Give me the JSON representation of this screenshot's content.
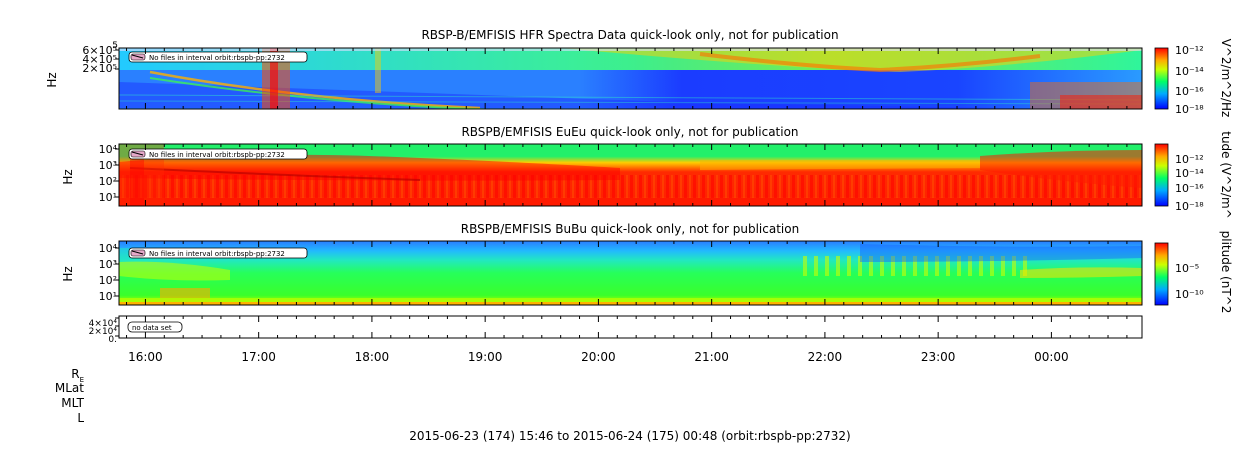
{
  "chart_data": [
    {
      "type": "heatmap",
      "title": "RBSP-B/EMFISIS  HFR Spectra Data quick-look only, not for publication",
      "ylabel": "Hz",
      "yticks": [
        "6×10⁵",
        "4×10⁵",
        "2×10⁵"
      ],
      "ytick_top": "5",
      "notice": "No files in interval orbit:rbspb-pp:2732",
      "colorbar_label": "V^2/m^2/Hz",
      "colorbar_ticks": [
        "10⁻¹²",
        "10⁻¹⁴",
        "10⁻¹⁶",
        "10⁻¹⁸"
      ],
      "colorbar_range": [
        -18.5,
        -11.5
      ]
    },
    {
      "type": "heatmap",
      "title": "RBSPB/EMFISIS  EuEu quick-look only, not for publication",
      "ylabel": "Hz",
      "yticks": [
        "10⁴",
        "10³",
        "10²",
        "10¹"
      ],
      "notice": "No files in interval orbit:rbspb-pp:2732",
      "colorbar_label": "tude (V^2/m^",
      "colorbar_ticks": [
        "10⁻¹²",
        "10⁻¹⁴",
        "10⁻¹⁶",
        "10⁻¹⁸"
      ],
      "colorbar_range": [
        -18.5,
        -11.5
      ]
    },
    {
      "type": "heatmap",
      "title": "RBSPB/EMFISIS  BuBu quick-look only, not for publication",
      "ylabel": "Hz",
      "yticks": [
        "10⁴",
        "10³",
        "10²",
        "10¹"
      ],
      "notice": "No files in interval orbit:rbspb-pp:2732",
      "colorbar_label": "plitude (nT^2",
      "colorbar_ticks": [
        "10⁻⁵",
        "10⁻¹⁰"
      ],
      "colorbar_range": [
        -12,
        -1
      ]
    },
    {
      "type": "line",
      "title": "",
      "yticks": [
        "4×10⁴",
        "2×10⁴",
        "0."
      ],
      "notice": "no data set"
    }
  ],
  "x_axis": {
    "ticks": [
      "16:00",
      "17:00",
      "18:00",
      "19:00",
      "20:00",
      "21:00",
      "22:00",
      "23:00",
      "00:00"
    ],
    "start_hour": 15.7667,
    "end_hour": 24.8
  },
  "ephemeris_labels": [
    "Rₑ",
    "MLat",
    "MLT",
    "L"
  ],
  "footer": "2015-06-23 (174) 15:46 to 2015-06-24 (175) 00:48 (orbit:rbspb-pp:2732)"
}
